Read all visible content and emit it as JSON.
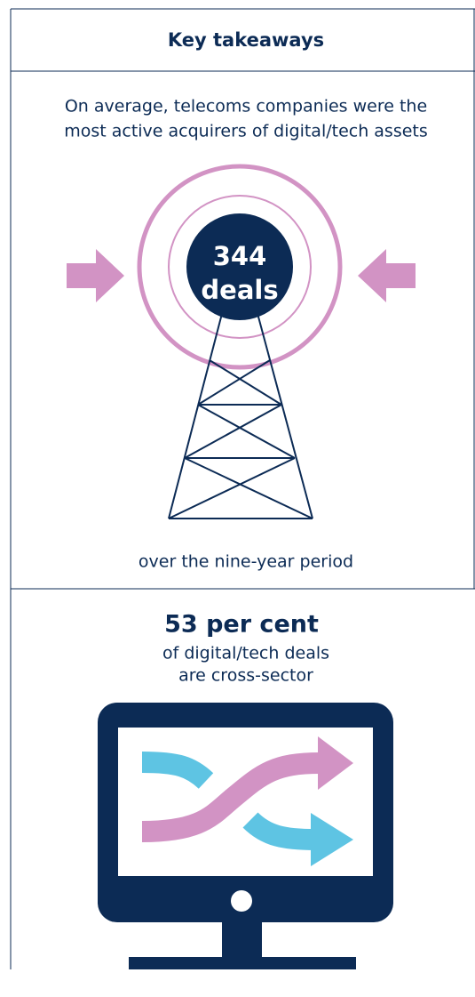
{
  "header": {
    "title": "Key takeaways"
  },
  "section_1": {
    "intro": [
      "On average, telecoms companies were the",
      "most active acquirers of digital/tech assets"
    ],
    "badge": {
      "number": "344",
      "unit": "deals"
    },
    "footer": "over the nine-year period"
  },
  "section_2": {
    "headline": "53 per cent",
    "text": [
      "of digital/tech deals",
      "are cross-sector"
    ]
  }
}
